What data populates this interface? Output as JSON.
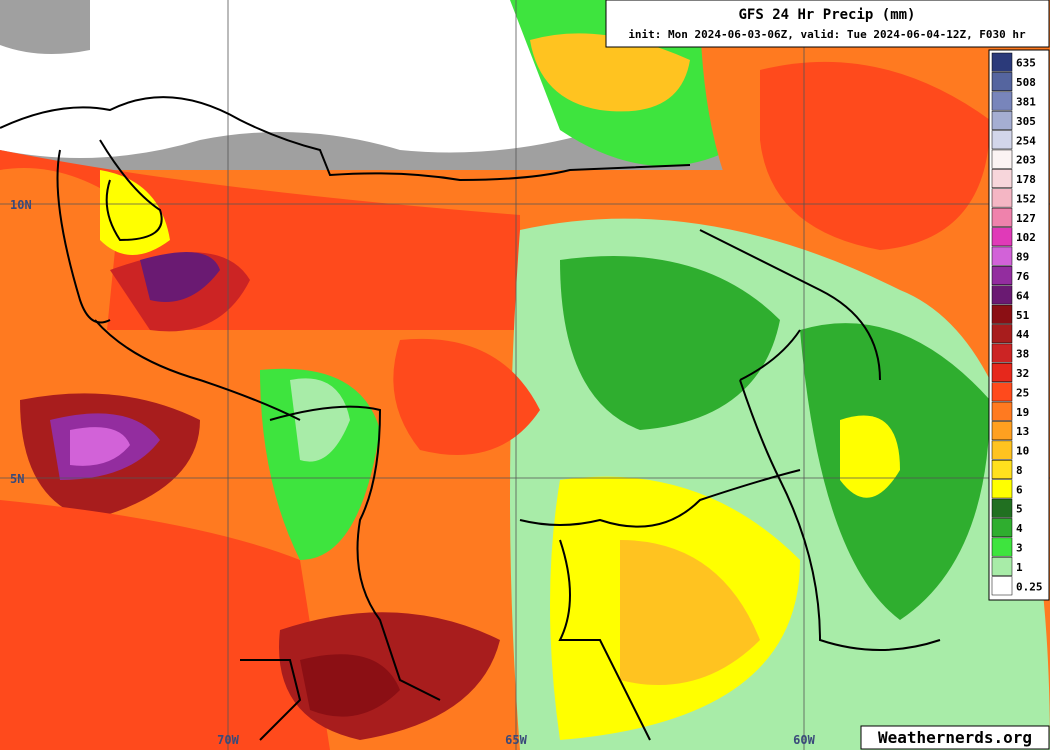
{
  "header": {
    "title": "GFS 24 Hr Precip (mm)",
    "subtitle": "init: Mon 2024-06-03-06Z, valid: Tue 2024-06-04-12Z, F030 hr"
  },
  "legend": {
    "entries": [
      {
        "label": 635,
        "color": "#2b3a7a"
      },
      {
        "label": 508,
        "color": "#55659f"
      },
      {
        "label": 381,
        "color": "#7885bb"
      },
      {
        "label": 305,
        "color": "#a5aed2"
      },
      {
        "label": 254,
        "color": "#d2d6ea"
      },
      {
        "label": 203,
        "color": "#fbf3f3"
      },
      {
        "label": 178,
        "color": "#f7d6db"
      },
      {
        "label": 152,
        "color": "#f4b6c4"
      },
      {
        "label": 127,
        "color": "#ef82ac"
      },
      {
        "label": 102,
        "color": "#e03ab8"
      },
      {
        "label": 89,
        "color": "#d262d8"
      },
      {
        "label": 76,
        "color": "#932d9f"
      },
      {
        "label": 64,
        "color": "#6a1a72"
      },
      {
        "label": 51,
        "color": "#8b0f14"
      },
      {
        "label": 44,
        "color": "#a81d1d"
      },
      {
        "label": 38,
        "color": "#cc2424"
      },
      {
        "label": 32,
        "color": "#e6281c"
      },
      {
        "label": 25,
        "color": "#ff4a1c"
      },
      {
        "label": 19,
        "color": "#ff7a20"
      },
      {
        "label": 13,
        "color": "#ffa020"
      },
      {
        "label": 10,
        "color": "#ffc320"
      },
      {
        "label": 8,
        "color": "#ffe01e"
      },
      {
        "label": 6,
        "color": "#ffff00"
      },
      {
        "label": 5,
        "color": "#217021"
      },
      {
        "label": 4,
        "color": "#2fae2f"
      },
      {
        "label": 3,
        "color": "#3ee43e"
      },
      {
        "label": 1,
        "color": "#a8eca8"
      },
      {
        "label": 0.25,
        "color": "#ffffff"
      }
    ]
  },
  "map": {
    "lat_labels": [
      "10N",
      "5N"
    ],
    "lon_labels": [
      "70W",
      "65W",
      "60W"
    ]
  },
  "footer": {
    "watermark": "Weathernerds.org"
  }
}
